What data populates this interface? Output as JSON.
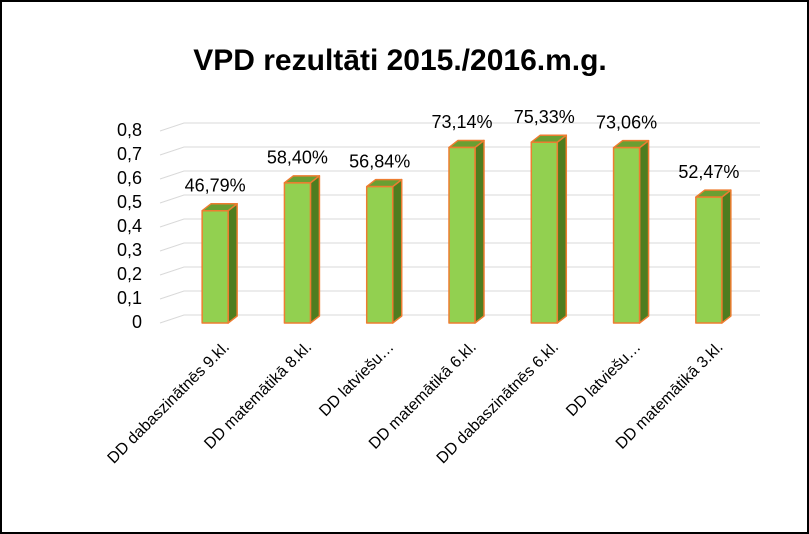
{
  "chart_data": {
    "type": "bar3d",
    "title": "VPD rezultāti 2015./2016.m.g.",
    "categories": [
      "DD dabaszinātnēs 9.kl.",
      "DD matemātikā 8.kl.",
      "DD latviešu…",
      "DD matemātikā 6.kl.",
      "DD dabaszinātnēs 6.kl.",
      "DD latviešu…",
      "DD matemātikā 3.kl."
    ],
    "values": [
      0.4679,
      0.584,
      0.5684,
      0.7314,
      0.7533,
      0.7306,
      0.5247
    ],
    "value_labels": [
      "46,79%",
      "58,40%",
      "56,84%",
      "73,14%",
      "75,33%",
      "73,06%",
      "52,47%"
    ],
    "color": "#92d050",
    "ylim": [
      0,
      0.8
    ],
    "yticks": [
      0,
      {
        "value": 0.1,
        "label": "0,1"
      },
      {
        "value": 0.2,
        "label": "0,2"
      },
      {
        "value": 0.3,
        "label": "0,3"
      },
      {
        "value": 0.4,
        "label": "0,4"
      },
      {
        "value": 0.5,
        "label": "0,5"
      },
      {
        "value": 0.6,
        "label": "0,6"
      },
      {
        "value": 0.7,
        "label": "0,7"
      },
      {
        "value": 0.8,
        "label": "0,8"
      }
    ],
    "grid": true
  }
}
